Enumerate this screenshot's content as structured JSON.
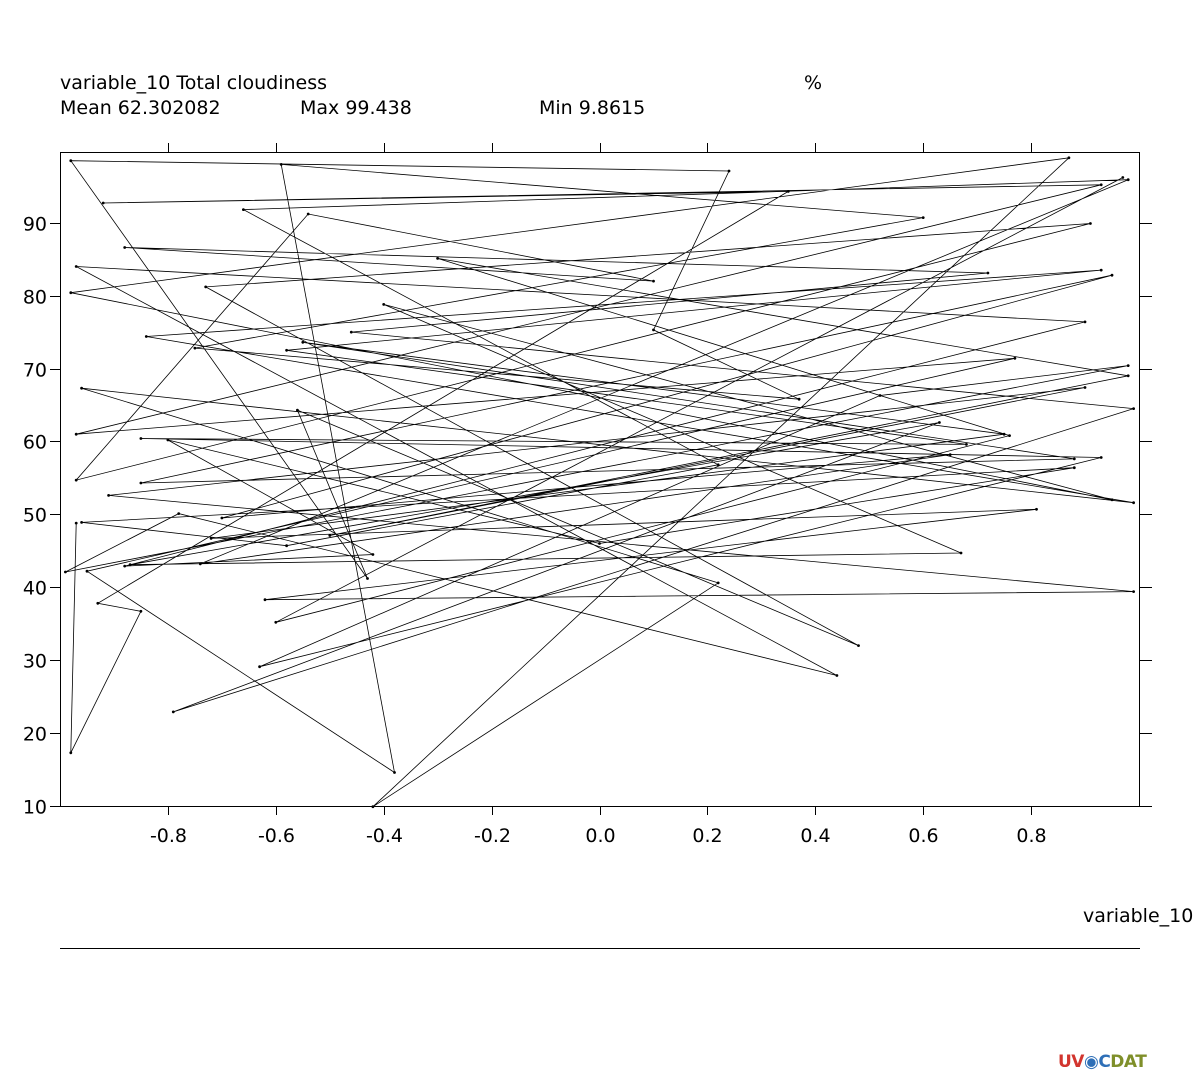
{
  "header": {
    "title": "variable_10 Total cloudiness",
    "units": "%",
    "mean": "Mean 62.302082",
    "max": "Max 99.438",
    "min": "Min 9.8615"
  },
  "footer": {
    "xlabel": "variable_10"
  },
  "logo": {
    "part1": "UV",
    "part2": "C",
    "part3": "DAT",
    "icon": "globe-icon"
  },
  "chart_data": {
    "type": "line",
    "title": "variable_10 Total cloudiness",
    "xlabel": "variable_10",
    "ylabel": "",
    "units": "%",
    "xlim": [
      -1.0,
      1.0
    ],
    "ylim": [
      10,
      99.7
    ],
    "x_ticks": [
      -0.8,
      -0.6,
      -0.4,
      -0.2,
      0.0,
      0.2,
      0.4,
      0.6,
      0.8
    ],
    "x_tick_labels": [
      "-0.8",
      "-0.6",
      "-0.4",
      "-0.2",
      "0.0",
      "0.2",
      "0.4",
      "0.6",
      "0.8"
    ],
    "y_ticks": [
      10,
      20,
      30,
      40,
      50,
      60,
      70,
      80,
      90
    ],
    "y_tick_labels": [
      "10",
      "20",
      "30",
      "40",
      "50",
      "60",
      "70",
      "80",
      "90"
    ],
    "grid": false,
    "marker": "dot",
    "color": "#000000",
    "series": [
      {
        "x": [
          -0.97,
          -0.98,
          -0.85,
          -0.93,
          0.35,
          -0.92,
          0.93,
          -0.97,
          0.77,
          -0.95,
          -0.38,
          -0.59,
          0.6,
          -0.75,
          0.37,
          0.1,
          0.24,
          -0.98,
          -0.43,
          -0.56,
          0.48,
          -0.73,
          0.91,
          -0.97,
          -0.54,
          0.1,
          -0.88,
          0.72,
          -0.46,
          0.99,
          -0.79,
          0.63,
          -0.87,
          0.67,
          -0.4,
          0.95,
          -0.98,
          0.87,
          -0.42,
          0.22,
          -0.96,
          0.99,
          -0.84,
          0.93,
          -0.58,
          0.68,
          -0.85,
          0.93,
          -0.63,
          0.52,
          0.98,
          -0.99,
          -0.78,
          0.44,
          -0.97,
          0.9,
          -0.88,
          -0.42,
          -0.8,
          0.0,
          0.88,
          -0.96,
          -0.58,
          0.22,
          -0.66,
          0.98,
          -0.74,
          0.65,
          -0.7,
          0.95,
          -0.85,
          0.88,
          -0.55,
          0.75,
          -0.72,
          0.81,
          -0.62,
          0.99,
          -0.91,
          0.9,
          -0.5,
          0.98,
          -0.3,
          0.76,
          -0.6,
          0.97
        ],
        "y": [
          48.8,
          17.3,
          36.7,
          37.8,
          94.3,
          92.7,
          95.2,
          61.0,
          71.4,
          42.2,
          14.6,
          98.0,
          90.7,
          72.8,
          65.8,
          75.3,
          97.1,
          98.5,
          41.2,
          64.3,
          32.0,
          81.2,
          89.9,
          54.7,
          91.2,
          82.0,
          86.6,
          83.1,
          75.0,
          64.5,
          22.9,
          62.6,
          43.1,
          44.7,
          78.8,
          52.0,
          80.4,
          98.9,
          9.9,
          40.6,
          67.3,
          51.6,
          74.4,
          83.5,
          72.5,
          59.6,
          60.4,
          57.8,
          29.1,
          66.3,
          70.4,
          42.1,
          50.1,
          27.9,
          84.0,
          76.4,
          42.9,
          44.5,
          60.2,
          46.0,
          56.4,
          48.9,
          45.7,
          56.8,
          91.8,
          95.9,
          43.2,
          58.2,
          49.5,
          82.8,
          54.3,
          57.6,
          73.6,
          61.0,
          46.7,
          50.7,
          38.3,
          39.4,
          52.6,
          67.4,
          47.1,
          69.0,
          85.1,
          60.8,
          35.2,
          96.2
        ]
      }
    ]
  }
}
